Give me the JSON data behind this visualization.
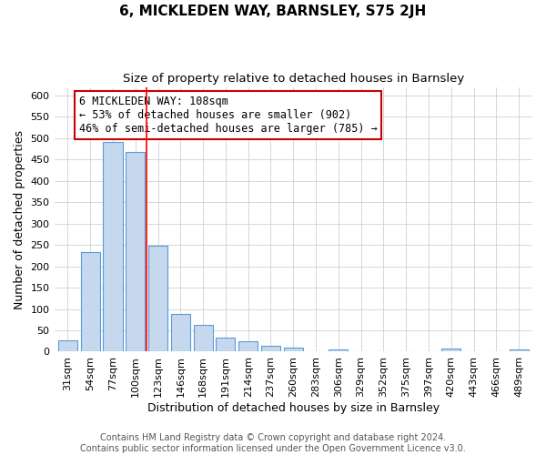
{
  "title": "6, MICKLEDEN WAY, BARNSLEY, S75 2JH",
  "subtitle": "Size of property relative to detached houses in Barnsley",
  "xlabel": "Distribution of detached houses by size in Barnsley",
  "ylabel": "Number of detached properties",
  "bar_labels": [
    "31sqm",
    "54sqm",
    "77sqm",
    "100sqm",
    "123sqm",
    "146sqm",
    "168sqm",
    "191sqm",
    "214sqm",
    "237sqm",
    "260sqm",
    "283sqm",
    "306sqm",
    "329sqm",
    "352sqm",
    "375sqm",
    "397sqm",
    "420sqm",
    "443sqm",
    "466sqm",
    "489sqm"
  ],
  "bar_values": [
    27,
    234,
    491,
    468,
    249,
    89,
    62,
    33,
    24,
    14,
    10,
    0,
    5,
    0,
    0,
    0,
    0,
    7,
    0,
    0,
    5
  ],
  "bar_color": "#c5d8ed",
  "bar_edge_color": "#5b9bd5",
  "highlight_bar_index": 3,
  "highlight_line_color": "#ff0000",
  "annotation_text": "6 MICKLEDEN WAY: 108sqm\n← 53% of detached houses are smaller (902)\n46% of semi-detached houses are larger (785) →",
  "annotation_box_color": "#ffffff",
  "annotation_box_edge": "#cc0000",
  "ylim": [
    0,
    620
  ],
  "yticks": [
    0,
    50,
    100,
    150,
    200,
    250,
    300,
    350,
    400,
    450,
    500,
    550,
    600
  ],
  "footer_line1": "Contains HM Land Registry data © Crown copyright and database right 2024.",
  "footer_line2": "Contains public sector information licensed under the Open Government Licence v3.0.",
  "title_fontsize": 11,
  "subtitle_fontsize": 9.5,
  "axis_label_fontsize": 9,
  "tick_fontsize": 8,
  "annotation_fontsize": 8.5,
  "footer_fontsize": 7,
  "grid_color": "#d0d0d0",
  "background_color": "#ffffff",
  "bar_width": 0.85
}
